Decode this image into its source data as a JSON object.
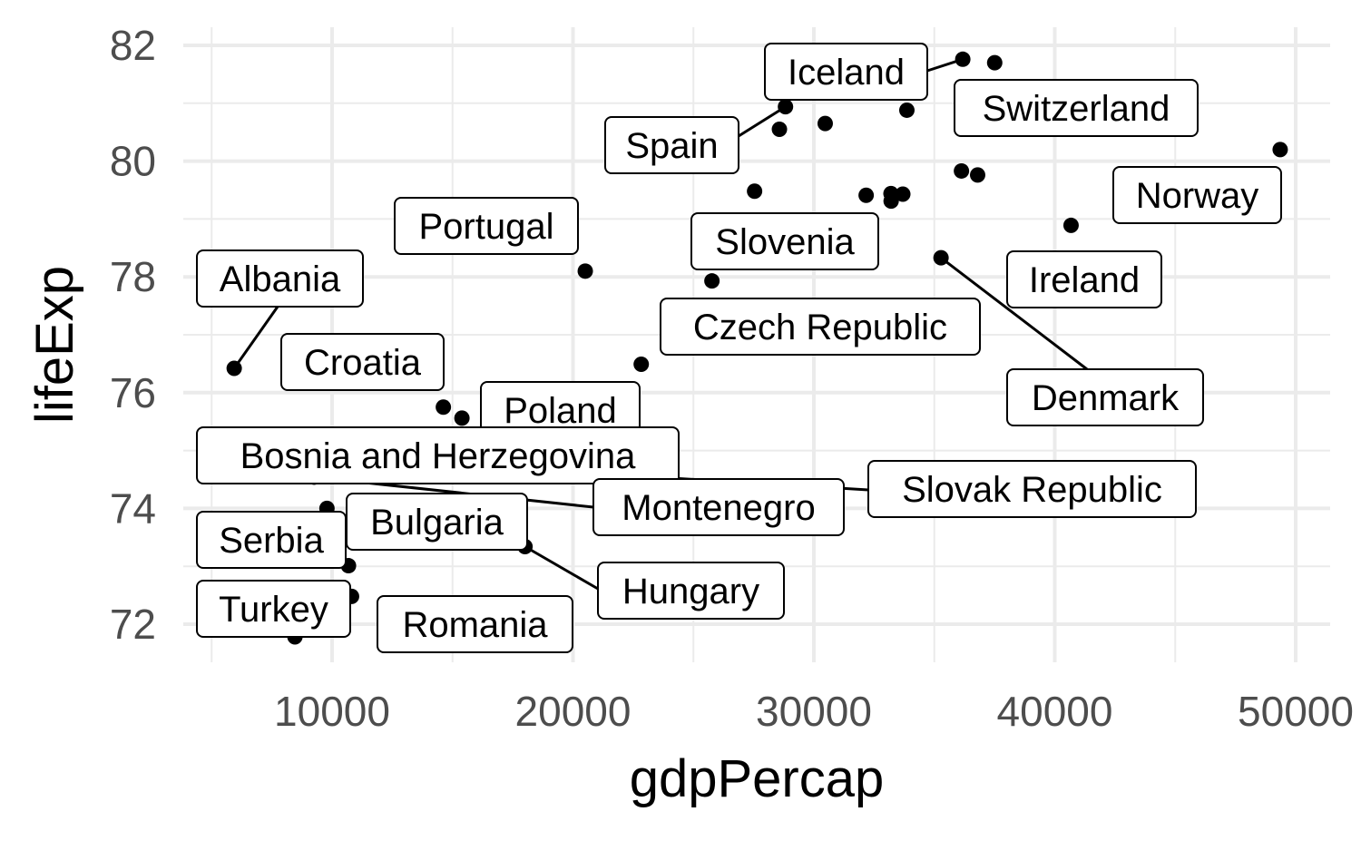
{
  "chart_data": {
    "type": "scatter",
    "title": "",
    "xlabel": "gdpPercap",
    "ylabel": "lifeExp",
    "xlim": [
      4000,
      51500
    ],
    "ylim": [
      71.5,
      82.3
    ],
    "x_ticks": [
      10000,
      20000,
      30000,
      40000,
      50000
    ],
    "y_ticks": [
      72,
      74,
      76,
      78,
      80,
      82
    ],
    "x_tick_labels": [
      "10000",
      "20000",
      "30000",
      "40000",
      "50000"
    ],
    "y_tick_labels": [
      "72",
      "74",
      "76",
      "78",
      "80",
      "82"
    ],
    "grid": true,
    "legend": "none",
    "points": [
      {
        "x": 36181,
        "y": 81.76,
        "label": "Iceland"
      },
      {
        "x": 37506,
        "y": 81.7,
        "label": "Switzerland"
      },
      {
        "x": 28821,
        "y": 80.94,
        "label": "Spain"
      },
      {
        "x": 49357,
        "y": 80.2,
        "label": "Norway"
      },
      {
        "x": 40676,
        "y": 78.89,
        "label": "Ireland"
      },
      {
        "x": 20510,
        "y": 78.1,
        "label": "Portugal"
      },
      {
        "x": 25768,
        "y": 77.93,
        "label": "Slovenia"
      },
      {
        "x": 35278,
        "y": 78.33,
        "label": "Denmark"
      },
      {
        "x": 22833,
        "y": 76.49,
        "label": "Czech Republic"
      },
      {
        "x": 5937,
        "y": 76.42,
        "label": "Albania"
      },
      {
        "x": 14619,
        "y": 75.75,
        "label": "Croatia"
      },
      {
        "x": 15390,
        "y": 75.56,
        "label": "Poland"
      },
      {
        "x": 7446,
        "y": 74.85,
        "label": "Bosnia and Herzegovina"
      },
      {
        "x": 9254,
        "y": 74.54,
        "label": "Montenegro"
      },
      {
        "x": 18678,
        "y": 74.66,
        "label": "Slovak Republic"
      },
      {
        "x": 10681,
        "y": 73.01,
        "label": "Bulgaria"
      },
      {
        "x": 9787,
        "y": 74.0,
        "label": "Serbia"
      },
      {
        "x": 18009,
        "y": 73.34,
        "label": "Hungary"
      },
      {
        "x": 8458,
        "y": 71.78,
        "label": "Turkey"
      },
      {
        "x": 10808,
        "y": 72.48,
        "label": "Romania"
      },
      {
        "x": 30470,
        "y": 80.65
      },
      {
        "x": 28570,
        "y": 80.55
      },
      {
        "x": 33860,
        "y": 80.88
      },
      {
        "x": 36126,
        "y": 79.83
      },
      {
        "x": 36798,
        "y": 79.76
      },
      {
        "x": 27538,
        "y": 79.48
      },
      {
        "x": 32170,
        "y": 79.41
      },
      {
        "x": 33207,
        "y": 79.31
      },
      {
        "x": 33692,
        "y": 79.43
      },
      {
        "x": 33200,
        "y": 79.44
      }
    ]
  }
}
